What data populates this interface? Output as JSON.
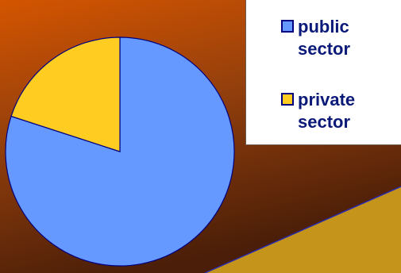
{
  "chart_data": {
    "type": "pie",
    "title": "",
    "slices": [
      {
        "label": "public sector",
        "value": 80,
        "color": "#6699ff"
      },
      {
        "label": "private sector",
        "value": 20,
        "color": "#ffcc22"
      }
    ],
    "legend": "top-right"
  },
  "legend": {
    "items": [
      {
        "label": "public sector",
        "color": "#6699ff"
      },
      {
        "label": "private sector",
        "color": "#ffcc22"
      }
    ]
  },
  "colors": {
    "background_top": "#d45500",
    "background_bottom": "#4a1e08",
    "accent_plane": "#c4951a"
  }
}
